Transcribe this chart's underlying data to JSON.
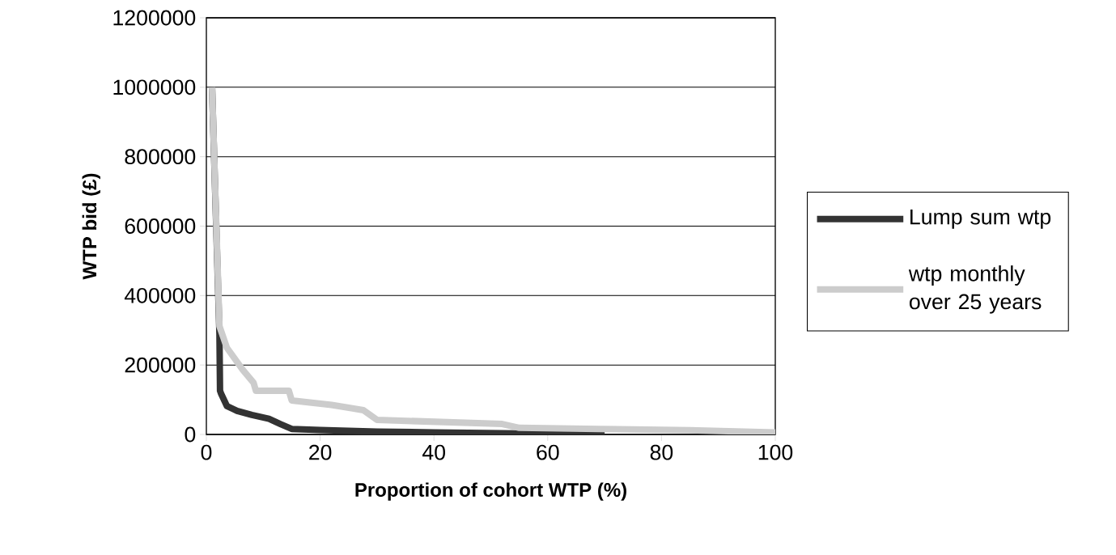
{
  "chart_data": {
    "type": "line",
    "xlabel": "Proportion of cohort WTP (%)",
    "ylabel": "WTP bid (£)",
    "xlim": [
      0,
      100
    ],
    "xticks": [
      0,
      20,
      40,
      60,
      80,
      100
    ],
    "ylim": [
      0,
      1200000
    ],
    "yticks": [
      0,
      200000,
      400000,
      600000,
      800000,
      1000000,
      1200000
    ],
    "grid": "y",
    "legend": "right",
    "series": [
      {
        "name": "Lump sum wtp",
        "color": "#333333",
        "x": [
          1,
          2.3,
          2.4,
          2.6,
          3.6,
          5.4,
          8,
          11,
          13,
          15,
          20,
          30,
          40,
          50,
          60,
          70
        ],
        "values": [
          1000000,
          290000,
          126000,
          117000,
          82000,
          68000,
          56000,
          45000,
          30000,
          16000,
          13000,
          8000,
          6000,
          4000,
          2000,
          0
        ]
      },
      {
        "name": "wtp monthly over 25 years",
        "color": "#cccccc",
        "x": [
          1,
          2.3,
          3.6,
          6.4,
          8.3,
          8.7,
          14.5,
          15,
          22,
          27.6,
          30,
          52,
          55,
          69,
          85,
          100
        ],
        "values": [
          1000000,
          312000,
          250000,
          186000,
          149000,
          126000,
          126000,
          98000,
          85000,
          70000,
          42000,
          30000,
          19000,
          16000,
          12000,
          6000
        ]
      }
    ]
  }
}
